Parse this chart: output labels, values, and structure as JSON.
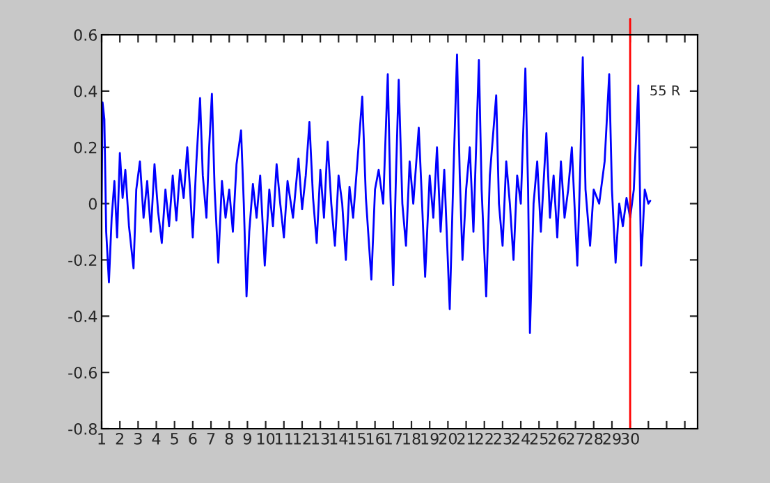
{
  "chart_data": {
    "type": "line",
    "x": [
      1.0,
      1.05,
      1.15,
      1.25,
      1.4,
      1.55,
      1.7,
      1.85,
      2.0,
      2.15,
      2.3,
      2.5,
      2.75,
      2.9,
      3.1,
      3.3,
      3.5,
      3.7,
      3.9,
      4.1,
      4.3,
      4.5,
      4.7,
      4.9,
      5.1,
      5.3,
      5.5,
      5.7,
      5.85,
      6.0,
      6.2,
      6.4,
      6.55,
      6.75,
      6.9,
      7.05,
      7.2,
      7.4,
      7.6,
      7.8,
      8.0,
      8.2,
      8.4,
      8.65,
      8.8,
      8.95,
      9.1,
      9.3,
      9.5,
      9.7,
      9.95,
      10.2,
      10.4,
      10.6,
      10.8,
      11.0,
      11.2,
      11.5,
      11.8,
      12.0,
      12.2,
      12.4,
      12.6,
      12.8,
      13.0,
      13.2,
      13.4,
      13.6,
      13.8,
      14.0,
      14.2,
      14.4,
      14.6,
      14.8,
      15.0,
      15.3,
      15.5,
      15.8,
      16.0,
      16.2,
      16.45,
      16.7,
      16.85,
      17.0,
      17.15,
      17.3,
      17.5,
      17.7,
      17.9,
      18.1,
      18.4,
      18.55,
      18.75,
      19.0,
      19.2,
      19.4,
      19.6,
      19.8,
      20.1,
      20.3,
      20.5,
      20.65,
      20.8,
      21.0,
      21.2,
      21.4,
      21.7,
      21.85,
      22.1,
      22.3,
      22.65,
      22.8,
      23.0,
      23.2,
      23.4,
      23.6,
      23.8,
      24.0,
      24.25,
      24.4,
      24.5,
      24.7,
      24.9,
      25.1,
      25.4,
      25.6,
      25.8,
      26.0,
      26.2,
      26.4,
      26.6,
      26.8,
      27.1,
      27.25,
      27.4,
      27.55,
      27.8,
      28.0,
      28.3,
      28.6,
      28.85,
      29.0,
      29.2,
      29.4,
      29.6,
      29.8,
      30.0,
      30.2,
      30.45,
      30.6,
      30.8,
      31.0,
      31.1
    ],
    "series": [
      {
        "color": "#0000ff",
        "values": [
          0.0,
          0.36,
          0.3,
          -0.1,
          -0.28,
          -0.05,
          0.08,
          -0.12,
          0.18,
          0.02,
          0.12,
          -0.08,
          -0.23,
          0.05,
          0.15,
          -0.05,
          0.08,
          -0.1,
          0.14,
          -0.03,
          -0.14,
          0.05,
          -0.08,
          0.1,
          -0.06,
          0.12,
          0.02,
          0.2,
          0.05,
          -0.12,
          0.15,
          0.375,
          0.1,
          -0.05,
          0.2,
          0.39,
          0.05,
          -0.21,
          0.08,
          -0.05,
          0.05,
          -0.1,
          0.14,
          0.26,
          0.0,
          -0.33,
          -0.1,
          0.07,
          -0.05,
          0.1,
          -0.22,
          0.05,
          -0.08,
          0.14,
          0.0,
          -0.12,
          0.08,
          -0.05,
          0.16,
          -0.02,
          0.1,
          0.29,
          0.02,
          -0.14,
          0.12,
          -0.05,
          0.22,
          0.0,
          -0.15,
          0.1,
          0.0,
          -0.2,
          0.06,
          -0.05,
          0.12,
          0.38,
          0.02,
          -0.27,
          0.05,
          0.12,
          0.0,
          0.46,
          0.02,
          -0.29,
          0.1,
          0.44,
          0.0,
          -0.15,
          0.15,
          0.0,
          0.27,
          0.05,
          -0.26,
          0.1,
          -0.05,
          0.2,
          -0.1,
          0.12,
          -0.375,
          0.1,
          0.53,
          0.1,
          -0.2,
          0.05,
          0.2,
          -0.1,
          0.51,
          0.05,
          -0.33,
          0.1,
          0.385,
          0.0,
          -0.15,
          0.15,
          0.0,
          -0.2,
          0.1,
          0.0,
          0.48,
          0.05,
          -0.46,
          0.0,
          0.15,
          -0.1,
          0.25,
          -0.05,
          0.1,
          -0.12,
          0.15,
          -0.05,
          0.05,
          0.2,
          -0.22,
          0.1,
          0.52,
          0.05,
          -0.15,
          0.05,
          0.0,
          0.15,
          0.46,
          0.05,
          -0.21,
          0.0,
          -0.08,
          0.02,
          -0.05,
          0.05,
          0.42,
          -0.22,
          0.05,
          0.0,
          0.01
        ]
      }
    ],
    "xlim": [
      1,
      33.7
    ],
    "xticks": [
      1,
      2,
      3,
      4,
      5,
      6,
      7,
      8,
      9,
      10,
      11,
      12,
      13,
      14,
      15,
      16,
      17,
      18,
      19,
      20,
      21,
      22,
      23,
      24,
      25,
      26,
      27,
      28,
      29,
      30,
      {
        "value": 31,
        "label": null
      },
      {
        "value": 32,
        "label": null
      },
      {
        "value": 33,
        "label": null
      }
    ],
    "ylim": [
      -0.8,
      0.6
    ],
    "yticks": [
      -0.8,
      -0.6,
      -0.4,
      -0.2,
      0,
      0.2,
      0.4,
      0.6
    ],
    "ref_lines": [
      {
        "axis": "x",
        "value": 30,
        "label": "55 R",
        "color": "#ff0000"
      }
    ],
    "grid": false,
    "legend": false
  }
}
